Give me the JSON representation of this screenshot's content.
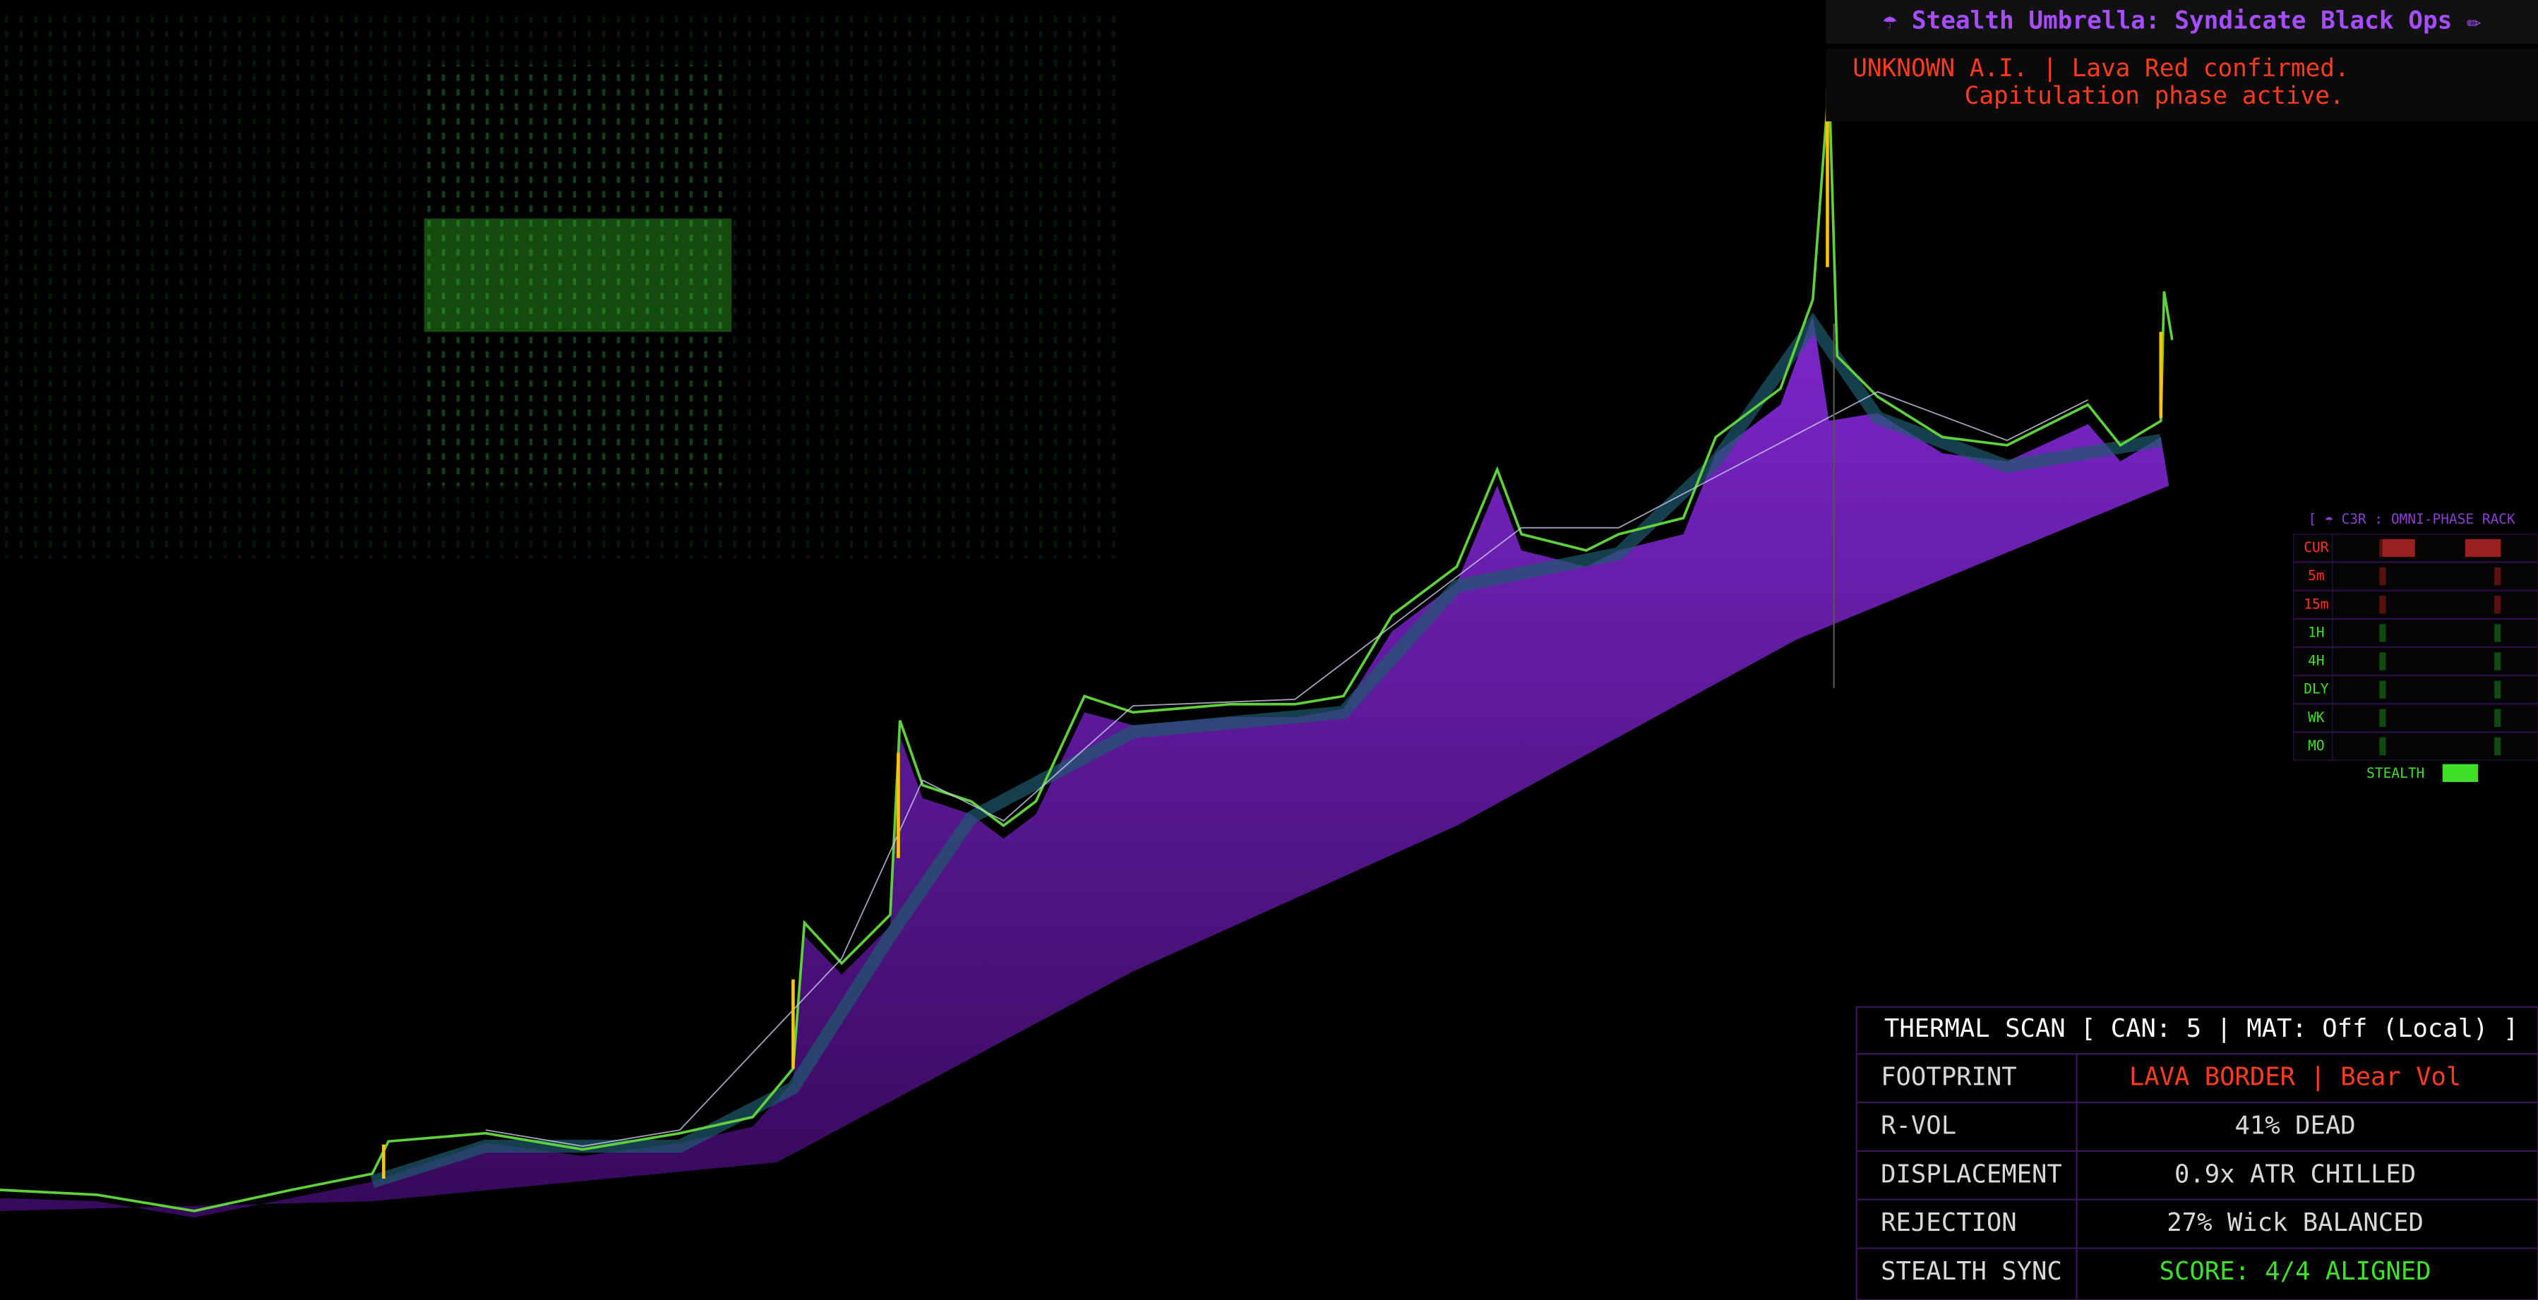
{
  "header": {
    "title": "☂ Stealth Umbrella: Syndicate Black Ops ✏"
  },
  "alert": {
    "lines": [
      "UNKNOWN A.I. | Lava Red confirmed.",
      "Capitulation phase active."
    ]
  },
  "rack": {
    "title": "[ ☂ C3R : OMNI-PHASE RACK",
    "rows": [
      "CUR",
      "5m",
      "15m",
      "1H",
      "4H",
      "DLY",
      "WK",
      "MO"
    ],
    "stealth": "STEALTH"
  },
  "table": {
    "header": "THERMAL SCAN [ CAN: 5 | MAT: Off (Local) ]",
    "rows": [
      [
        "FOOTPRINT",
        "LAVA BORDER | Bear Vol"
      ],
      [
        "R-VOL",
        "41% DEAD"
      ],
      [
        "DISPLACEMENT",
        "0.9x ATR CHILLED"
      ],
      [
        "REJECTION",
        "27% Wick BALANCED"
      ],
      [
        "STEALTH SYNC",
        "SCORE: 4/4 ALIGNED"
      ]
    ]
  }
}
